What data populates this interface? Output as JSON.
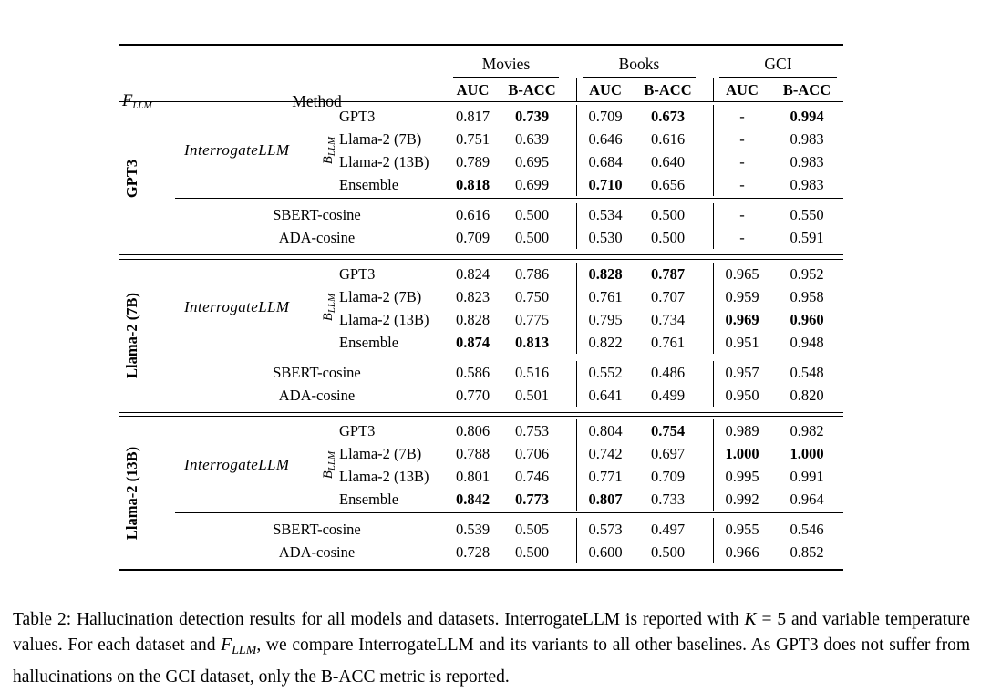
{
  "page": {
    "background": "#ffffff",
    "text_color": "#000000"
  },
  "table": {
    "header": {
      "f_llm_base": "F",
      "f_llm_sub": "LLM",
      "method_label": "Method",
      "groups": [
        "Movies",
        "Books",
        "GCI"
      ],
      "metrics": [
        "AUC",
        "B-ACC"
      ]
    },
    "interrogate_label": "InterrogateLLM",
    "b_llm_base": "B",
    "b_llm_sub": "LLM",
    "blocks": [
      {
        "f_llm": "GPT3",
        "variants": [
          {
            "method": "GPT3",
            "cells": [
              {
                "v": "0.817"
              },
              {
                "v": "0.739",
                "b": true
              },
              {
                "v": "0.709"
              },
              {
                "v": "0.673",
                "b": true
              },
              {
                "v": "-"
              },
              {
                "v": "0.994",
                "b": true
              }
            ]
          },
          {
            "method": "Llama-2 (7B)",
            "cells": [
              {
                "v": "0.751"
              },
              {
                "v": "0.639"
              },
              {
                "v": "0.646"
              },
              {
                "v": "0.616"
              },
              {
                "v": "-"
              },
              {
                "v": "0.983"
              }
            ]
          },
          {
            "method": "Llama-2 (13B)",
            "cells": [
              {
                "v": "0.789"
              },
              {
                "v": "0.695"
              },
              {
                "v": "0.684"
              },
              {
                "v": "0.640"
              },
              {
                "v": "-"
              },
              {
                "v": "0.983"
              }
            ]
          },
          {
            "method": "Ensemble",
            "cells": [
              {
                "v": "0.818",
                "b": true
              },
              {
                "v": "0.699"
              },
              {
                "v": "0.710",
                "b": true
              },
              {
                "v": "0.656"
              },
              {
                "v": "-"
              },
              {
                "v": "0.983"
              }
            ]
          }
        ],
        "baselines": [
          {
            "method": "SBERT-cosine",
            "cells": [
              {
                "v": "0.616"
              },
              {
                "v": "0.500"
              },
              {
                "v": "0.534"
              },
              {
                "v": "0.500"
              },
              {
                "v": "-"
              },
              {
                "v": "0.550"
              }
            ]
          },
          {
            "method": "ADA-cosine",
            "cells": [
              {
                "v": "0.709"
              },
              {
                "v": "0.500"
              },
              {
                "v": "0.530"
              },
              {
                "v": "0.500"
              },
              {
                "v": "-"
              },
              {
                "v": "0.591"
              }
            ]
          }
        ]
      },
      {
        "f_llm": "Llama-2 (7B)",
        "variants": [
          {
            "method": "GPT3",
            "cells": [
              {
                "v": "0.824"
              },
              {
                "v": "0.786"
              },
              {
                "v": "0.828",
                "b": true
              },
              {
                "v": "0.787",
                "b": true
              },
              {
                "v": "0.965"
              },
              {
                "v": "0.952"
              }
            ]
          },
          {
            "method": "Llama-2 (7B)",
            "cells": [
              {
                "v": "0.823"
              },
              {
                "v": "0.750"
              },
              {
                "v": "0.761"
              },
              {
                "v": "0.707"
              },
              {
                "v": "0.959"
              },
              {
                "v": "0.958"
              }
            ]
          },
          {
            "method": "Llama-2 (13B)",
            "cells": [
              {
                "v": "0.828"
              },
              {
                "v": "0.775"
              },
              {
                "v": "0.795"
              },
              {
                "v": "0.734"
              },
              {
                "v": "0.969",
                "b": true
              },
              {
                "v": "0.960",
                "b": true
              }
            ]
          },
          {
            "method": "Ensemble",
            "cells": [
              {
                "v": "0.874",
                "b": true
              },
              {
                "v": "0.813",
                "b": true
              },
              {
                "v": "0.822"
              },
              {
                "v": "0.761"
              },
              {
                "v": "0.951"
              },
              {
                "v": "0.948"
              }
            ]
          }
        ],
        "baselines": [
          {
            "method": "SBERT-cosine",
            "cells": [
              {
                "v": "0.586"
              },
              {
                "v": "0.516"
              },
              {
                "v": "0.552"
              },
              {
                "v": "0.486"
              },
              {
                "v": "0.957"
              },
              {
                "v": "0.548"
              }
            ]
          },
          {
            "method": "ADA-cosine",
            "cells": [
              {
                "v": "0.770"
              },
              {
                "v": "0.501"
              },
              {
                "v": "0.641"
              },
              {
                "v": "0.499"
              },
              {
                "v": "0.950"
              },
              {
                "v": "0.820"
              }
            ]
          }
        ]
      },
      {
        "f_llm": "Llama-2 (13B)",
        "variants": [
          {
            "method": "GPT3",
            "cells": [
              {
                "v": "0.806"
              },
              {
                "v": "0.753"
              },
              {
                "v": "0.804"
              },
              {
                "v": "0.754",
                "b": true
              },
              {
                "v": "0.989"
              },
              {
                "v": "0.982"
              }
            ]
          },
          {
            "method": "Llama-2 (7B)",
            "cells": [
              {
                "v": "0.788"
              },
              {
                "v": "0.706"
              },
              {
                "v": "0.742"
              },
              {
                "v": "0.697"
              },
              {
                "v": "1.000",
                "b": true
              },
              {
                "v": "1.000",
                "b": true
              }
            ]
          },
          {
            "method": "Llama-2 (13B)",
            "cells": [
              {
                "v": "0.801"
              },
              {
                "v": "0.746"
              },
              {
                "v": "0.771"
              },
              {
                "v": "0.709"
              },
              {
                "v": "0.995"
              },
              {
                "v": "0.991"
              }
            ]
          },
          {
            "method": "Ensemble",
            "cells": [
              {
                "v": "0.842",
                "b": true
              },
              {
                "v": "0.773",
                "b": true
              },
              {
                "v": "0.807",
                "b": true
              },
              {
                "v": "0.733"
              },
              {
                "v": "0.992"
              },
              {
                "v": "0.964"
              }
            ]
          }
        ],
        "baselines": [
          {
            "method": "SBERT-cosine",
            "cells": [
              {
                "v": "0.539"
              },
              {
                "v": "0.505"
              },
              {
                "v": "0.573"
              },
              {
                "v": "0.497"
              },
              {
                "v": "0.955"
              },
              {
                "v": "0.546"
              }
            ]
          },
          {
            "method": "ADA-cosine",
            "cells": [
              {
                "v": "0.728"
              },
              {
                "v": "0.500"
              },
              {
                "v": "0.600"
              },
              {
                "v": "0.500"
              },
              {
                "v": "0.966"
              },
              {
                "v": "0.852"
              }
            ]
          }
        ]
      }
    ],
    "caption_segments": [
      {
        "t": "Table 2: Hallucination detection results for all models and datasets. InterrogateLLM is reported with "
      },
      {
        "t": "K",
        "style": "italic"
      },
      {
        "t": " = 5 and variable temperature values. For each dataset and "
      },
      {
        "t": "F",
        "style": "italic"
      },
      {
        "t": "LLM",
        "style": "sub"
      },
      {
        "t": ", we compare InterrogateLLM and its variants to all other baselines. As GPT3 does not suffer from hallucinations on the GCI dataset, only the B-ACC metric is reported."
      }
    ]
  }
}
